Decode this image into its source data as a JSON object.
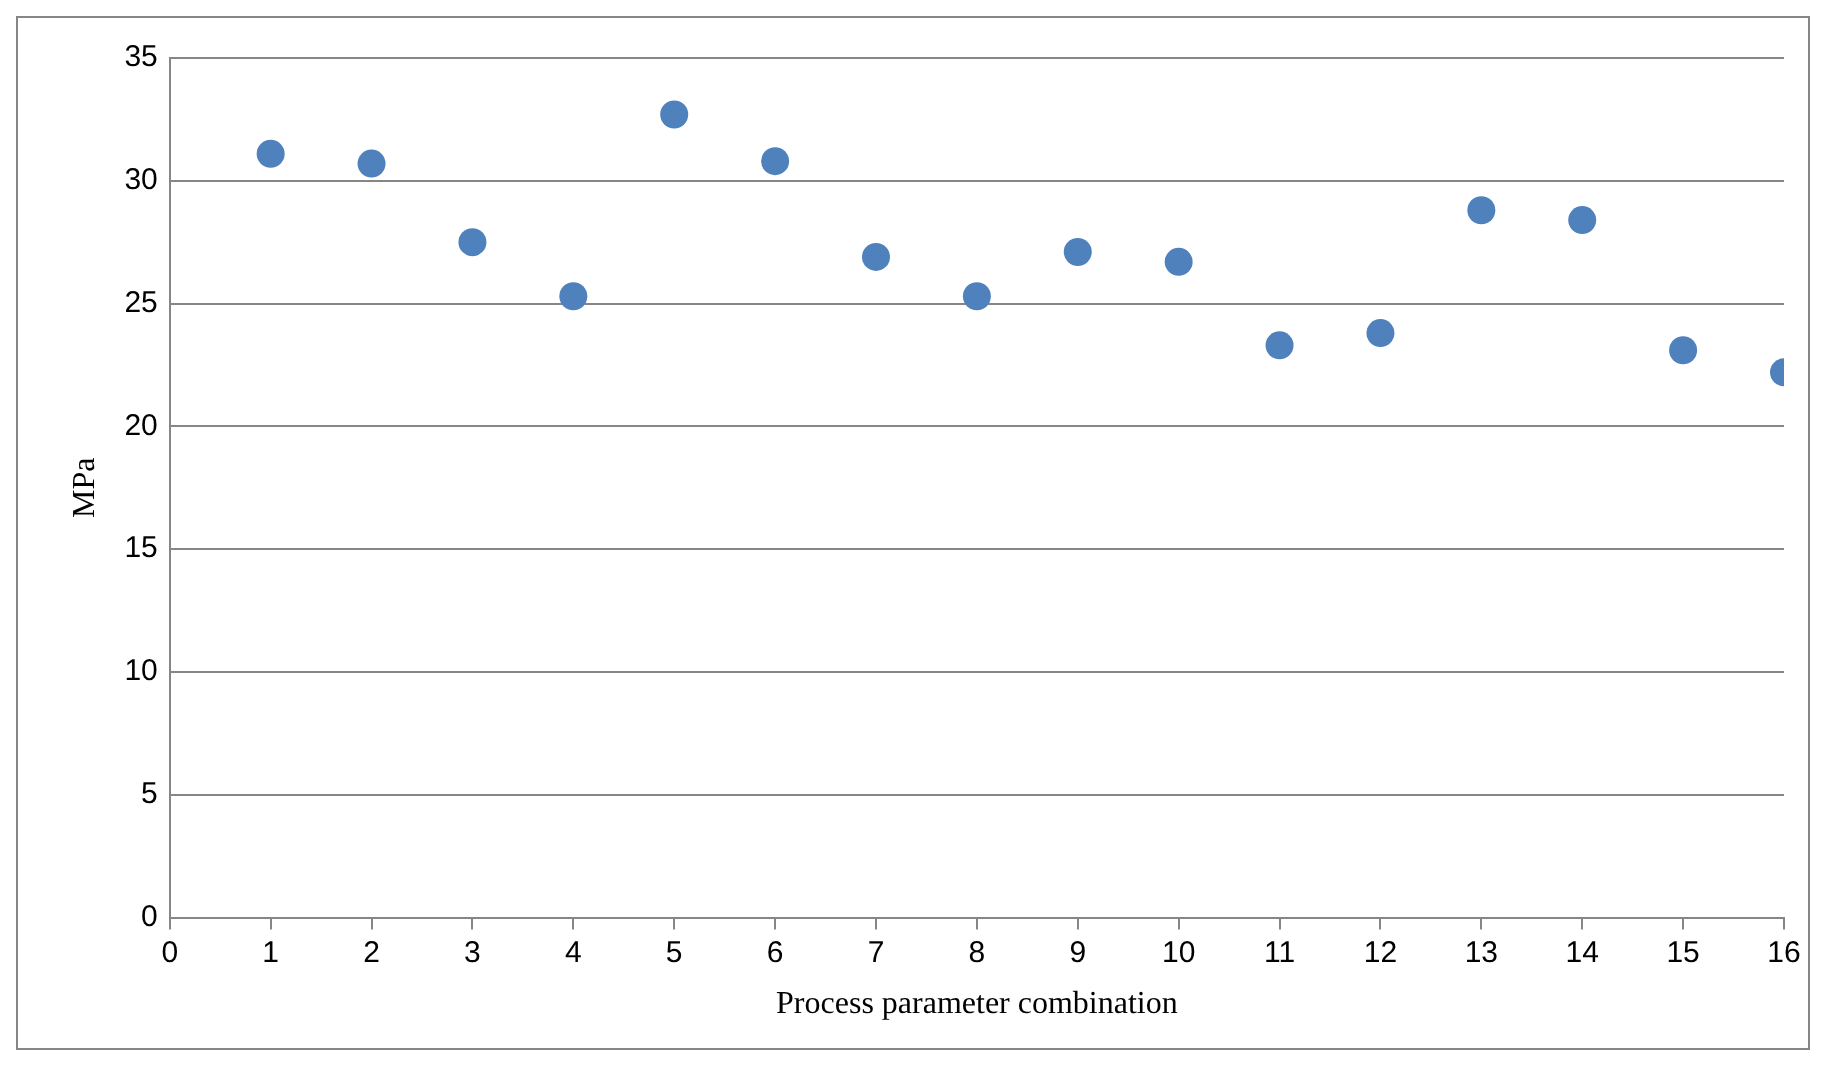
{
  "chart_data": {
    "type": "scatter",
    "xlabel": "Process parameter combination",
    "ylabel": "MPa",
    "x": [
      1,
      2,
      3,
      4,
      5,
      6,
      7,
      8,
      9,
      10,
      11,
      12,
      13,
      14,
      15,
      16
    ],
    "series": [
      {
        "color": "#4f81bd",
        "values": [
          31.1,
          30.7,
          27.5,
          25.3,
          32.7,
          30.8,
          26.9,
          25.3,
          27.1,
          26.7,
          23.3,
          23.8,
          28.8,
          28.4,
          23.1,
          22.2
        ]
      }
    ],
    "xlim": [
      0,
      16
    ],
    "xticks": [
      0,
      1,
      2,
      3,
      4,
      5,
      6,
      7,
      8,
      9,
      10,
      11,
      12,
      13,
      14,
      15,
      16
    ],
    "ylim": [
      0,
      35
    ],
    "yticks": [
      0,
      5,
      10,
      15,
      20,
      25,
      30,
      35
    ],
    "grid": "y",
    "legend": false,
    "marker": "circle"
  }
}
